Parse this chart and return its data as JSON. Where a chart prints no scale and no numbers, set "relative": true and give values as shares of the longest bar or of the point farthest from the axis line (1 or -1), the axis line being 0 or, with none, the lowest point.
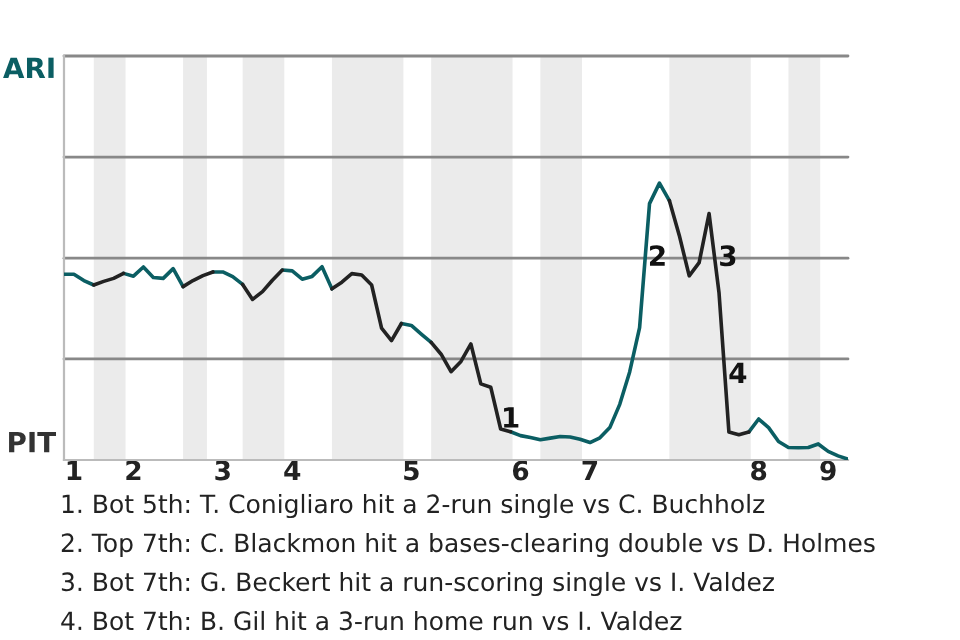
{
  "chart_data": {
    "type": "line",
    "relative": true,
    "categories": [
      null,
      "1",
      null,
      null,
      null,
      null,
      null,
      "2",
      null,
      null,
      null,
      null,
      null,
      null,
      null,
      null,
      "3",
      null,
      null,
      null,
      null,
      null,
      null,
      "4",
      null,
      null,
      null,
      null,
      null,
      null,
      null,
      null,
      null,
      null,
      null,
      "5",
      null,
      null,
      null,
      null,
      null,
      null,
      null,
      null,
      null,
      null,
      "6",
      null,
      null,
      null,
      null,
      null,
      null,
      "7",
      null,
      null,
      null,
      null,
      null,
      null,
      null,
      null,
      null,
      null,
      null,
      null,
      null,
      null,
      null,
      null,
      "8",
      null,
      null,
      null,
      null,
      null,
      null,
      "9",
      null,
      null
    ],
    "series": [
      {
        "color": "#0b5e63",
        "values": [
          0.671,
          0.671,
          0.648,
          0.632,
          null,
          null,
          0.674,
          0.664,
          0.697,
          0.659,
          0.656,
          0.691,
          0.626,
          null,
          null,
          0.679,
          0.679,
          0.662,
          0.634,
          null,
          null,
          null,
          0.686,
          0.683,
          0.653,
          0.663,
          0.698,
          0.618,
          null,
          null,
          null,
          null,
          null,
          null,
          0.493,
          0.486,
          0.455,
          0.425,
          null,
          null,
          null,
          null,
          null,
          null,
          null,
          0.102,
          0.088,
          0.081,
          0.073,
          0.079,
          0.085,
          0.083,
          0.075,
          0.063,
          0.08,
          0.117,
          0.201,
          0.318,
          0.478,
          0.926,
          1.0,
          0.937,
          null,
          null,
          null,
          null,
          null,
          null,
          null,
          0.101,
          0.148,
          0.117,
          0.067,
          0.045,
          0.044,
          0.045,
          0.058,
          0.031,
          0.015,
          0.003
        ]
      },
      {
        "color": "#222222",
        "values": [
          null,
          null,
          null,
          0.632,
          0.645,
          0.656,
          0.674,
          null,
          null,
          null,
          null,
          null,
          0.626,
          0.648,
          0.666,
          0.679,
          null,
          null,
          0.634,
          0.58,
          0.608,
          0.649,
          0.686,
          null,
          null,
          null,
          null,
          0.618,
          0.642,
          0.673,
          0.668,
          0.632,
          0.476,
          0.431,
          0.493,
          null,
          null,
          0.425,
          0.382,
          0.319,
          0.356,
          0.419,
          0.275,
          0.263,
          0.112,
          0.102,
          null,
          null,
          null,
          null,
          null,
          null,
          null,
          null,
          null,
          null,
          null,
          null,
          null,
          null,
          null,
          0.937,
          0.811,
          0.665,
          0.713,
          0.89,
          0.605,
          0.101,
          0.091,
          0.101,
          null,
          null,
          null,
          null,
          null,
          null,
          null,
          null,
          null,
          null
        ]
      }
    ],
    "ref_lines": [
      {
        "axis": "y",
        "value": 0.365,
        "color": "#888888"
      },
      {
        "axis": "y",
        "value": 0.729,
        "color": "#888888"
      },
      {
        "axis": "y",
        "value": 1.094,
        "color": "#888888"
      },
      {
        "axis": "y",
        "value": 1.459,
        "color": "#888888"
      }
    ],
    "annotations": [
      "ARI",
      "PIT",
      "1",
      "2",
      "3",
      "4",
      "1. Bot 5th: T. Conigliaro hit a 2-run single vs C. Buchholz",
      "2. Top 7th: C. Blackmon hit a bases-clearing double vs D. Holmes",
      "3. Bot 7th: G. Beckert hit a run-scoring single vs I. Valdez",
      "4. Bot 7th: B. Gil hit a 3-run home run vs I. Valdez"
    ]
  }
}
